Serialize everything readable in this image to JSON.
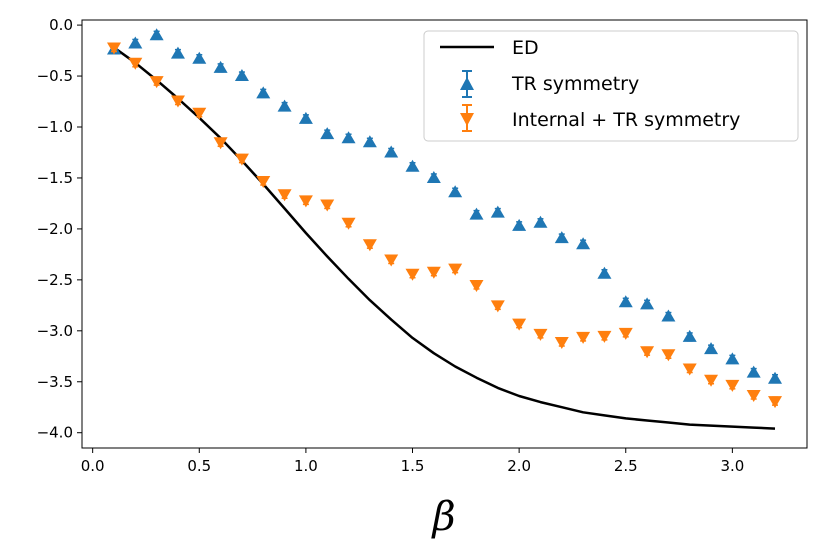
{
  "chart_data": {
    "type": "scatter",
    "title": "",
    "xlabel": "β",
    "ylabel": "",
    "xlim": [
      -0.05,
      3.35
    ],
    "ylim": [
      -4.15,
      0.05
    ],
    "xticks": [
      "0.0",
      "0.5",
      "1.0",
      "1.5",
      "2.0",
      "2.5",
      "3.0"
    ],
    "xtick_values": [
      0.0,
      0.5,
      1.0,
      1.5,
      2.0,
      2.5,
      3.0
    ],
    "yticks": [
      "0.0",
      "−0.5",
      "−1.0",
      "−1.5",
      "−2.0",
      "−2.5",
      "−3.0",
      "−3.5",
      "−4.0"
    ],
    "ytick_values": [
      0.0,
      -0.5,
      -1.0,
      -1.5,
      -2.0,
      -2.5,
      -3.0,
      -3.5,
      -4.0
    ],
    "grid": false,
    "legend_position": "top-right",
    "series": [
      {
        "name": "ED",
        "kind": "line",
        "color": "#000000",
        "x": [
          0.1,
          0.2,
          0.3,
          0.4,
          0.5,
          0.6,
          0.7,
          0.8,
          0.9,
          1.0,
          1.1,
          1.2,
          1.3,
          1.4,
          1.5,
          1.6,
          1.7,
          1.8,
          1.9,
          2.0,
          2.1,
          2.2,
          2.3,
          2.4,
          2.5,
          2.6,
          2.7,
          2.8,
          2.9,
          3.0,
          3.1,
          3.2
        ],
        "y": [
          -0.22,
          -0.37,
          -0.54,
          -0.72,
          -0.91,
          -1.11,
          -1.33,
          -1.56,
          -1.8,
          -2.04,
          -2.27,
          -2.49,
          -2.7,
          -2.89,
          -3.07,
          -3.22,
          -3.35,
          -3.46,
          -3.56,
          -3.64,
          -3.7,
          -3.75,
          -3.8,
          -3.83,
          -3.86,
          -3.88,
          -3.9,
          -3.92,
          -3.93,
          -3.94,
          -3.95,
          -3.96
        ]
      },
      {
        "name": "TR symmetry",
        "kind": "markers",
        "marker": "triangle-up",
        "color": "#1f77b4",
        "x": [
          0.1,
          0.2,
          0.3,
          0.4,
          0.5,
          0.6,
          0.7,
          0.8,
          0.9,
          1.0,
          1.1,
          1.2,
          1.3,
          1.4,
          1.5,
          1.6,
          1.7,
          1.8,
          1.9,
          2.0,
          2.1,
          2.2,
          2.3,
          2.4,
          2.5,
          2.6,
          2.7,
          2.8,
          2.9,
          3.0,
          3.1,
          3.2
        ],
        "y": [
          -0.24,
          -0.18,
          -0.1,
          -0.28,
          -0.33,
          -0.42,
          -0.5,
          -0.67,
          -0.8,
          -0.92,
          -1.07,
          -1.11,
          -1.15,
          -1.25,
          -1.39,
          -1.5,
          -1.64,
          -1.86,
          -1.84,
          -1.97,
          -1.94,
          -2.09,
          -2.15,
          -2.44,
          -2.72,
          -2.74,
          -2.86,
          -3.06,
          -3.18,
          -3.28,
          -3.41,
          -3.47
        ]
      },
      {
        "name": "Internal + TR symmetry",
        "kind": "markers",
        "marker": "triangle-down",
        "color": "#ff7f0e",
        "x": [
          0.1,
          0.2,
          0.3,
          0.4,
          0.5,
          0.6,
          0.7,
          0.8,
          0.9,
          1.0,
          1.1,
          1.2,
          1.3,
          1.4,
          1.5,
          1.6,
          1.7,
          1.8,
          1.9,
          2.0,
          2.1,
          2.2,
          2.3,
          2.4,
          2.5,
          2.6,
          2.7,
          2.8,
          2.9,
          3.0,
          3.1,
          3.2
        ],
        "y": [
          -0.22,
          -0.37,
          -0.55,
          -0.74,
          -0.86,
          -1.15,
          -1.31,
          -1.53,
          -1.66,
          -1.72,
          -1.76,
          -1.94,
          -2.15,
          -2.3,
          -2.44,
          -2.42,
          -2.39,
          -2.55,
          -2.75,
          -2.93,
          -3.03,
          -3.11,
          -3.06,
          -3.05,
          -3.02,
          -3.2,
          -3.23,
          -3.37,
          -3.48,
          -3.53,
          -3.63,
          -3.69
        ]
      }
    ]
  }
}
